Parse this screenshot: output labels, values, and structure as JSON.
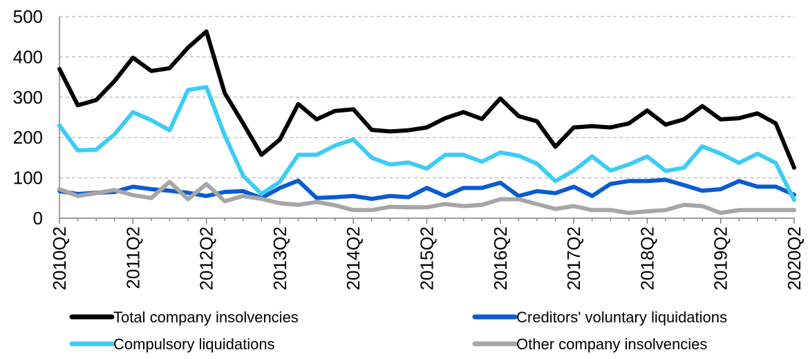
{
  "chart_data": {
    "type": "line",
    "x": [
      "2010Q2",
      "2010Q3",
      "2010Q4",
      "2011Q1",
      "2011Q2",
      "2011Q3",
      "2011Q4",
      "2012Q1",
      "2012Q2",
      "2012Q3",
      "2012Q4",
      "2013Q1",
      "2013Q2",
      "2013Q3",
      "2013Q4",
      "2014Q1",
      "2014Q2",
      "2014Q3",
      "2014Q4",
      "2015Q1",
      "2015Q2",
      "2015Q3",
      "2015Q4",
      "2016Q1",
      "2016Q2",
      "2016Q3",
      "2016Q4",
      "2017Q1",
      "2017Q2",
      "2017Q3",
      "2017Q4",
      "2018Q1",
      "2018Q2",
      "2018Q3",
      "2018Q4",
      "2019Q1",
      "2019Q2",
      "2019Q3",
      "2019Q4",
      "2020Q1",
      "2020Q2"
    ],
    "x_tick_labels": [
      "2010Q2",
      "2011Q2",
      "2012Q2",
      "2013Q2",
      "2014Q2",
      "2015Q2",
      "2016Q2",
      "2017Q2",
      "2018Q2",
      "2019Q2",
      "2020Q2"
    ],
    "ylim": [
      0,
      500
    ],
    "y_ticks": [
      "0",
      "100",
      "200",
      "300",
      "400",
      "500"
    ],
    "grid": true,
    "legend_position": "bottom",
    "series": [
      {
        "name": "Total company insolvencies",
        "color": "#000000",
        "values": [
          370,
          280,
          293,
          340,
          398,
          365,
          372,
          423,
          463,
          310,
          235,
          157,
          195,
          283,
          245,
          266,
          270,
          219,
          215,
          218,
          225,
          248,
          263,
          246,
          297,
          253,
          240,
          177,
          225,
          228,
          225,
          235,
          267,
          232,
          245,
          278,
          245,
          248,
          260,
          235,
          125
        ]
      },
      {
        "name": "Creditors' voluntary liquidations",
        "color": "#0a5bd1",
        "values": [
          67,
          60,
          63,
          65,
          78,
          72,
          68,
          63,
          55,
          65,
          67,
          50,
          75,
          93,
          50,
          52,
          55,
          48,
          55,
          52,
          75,
          55,
          75,
          75,
          88,
          55,
          67,
          62,
          78,
          55,
          85,
          92,
          92,
          95,
          82,
          68,
          72,
          92,
          78,
          78,
          58
        ]
      },
      {
        "name": "Compulsory liquidations",
        "color": "#3dccf5",
        "values": [
          230,
          168,
          170,
          208,
          263,
          243,
          218,
          318,
          325,
          205,
          105,
          60,
          90,
          157,
          157,
          180,
          195,
          150,
          133,
          138,
          123,
          157,
          157,
          140,
          163,
          155,
          135,
          92,
          118,
          153,
          118,
          133,
          153,
          117,
          125,
          178,
          160,
          137,
          160,
          137,
          45
        ]
      },
      {
        "name": "Other company insolvencies",
        "color": "#a6a6a6",
        "values": [
          72,
          55,
          62,
          70,
          57,
          50,
          90,
          47,
          85,
          42,
          55,
          48,
          37,
          33,
          40,
          32,
          20,
          20,
          28,
          27,
          27,
          35,
          30,
          33,
          47,
          47,
          35,
          23,
          30,
          20,
          20,
          13,
          17,
          20,
          33,
          30,
          13,
          20,
          20,
          20,
          20
        ]
      }
    ]
  }
}
